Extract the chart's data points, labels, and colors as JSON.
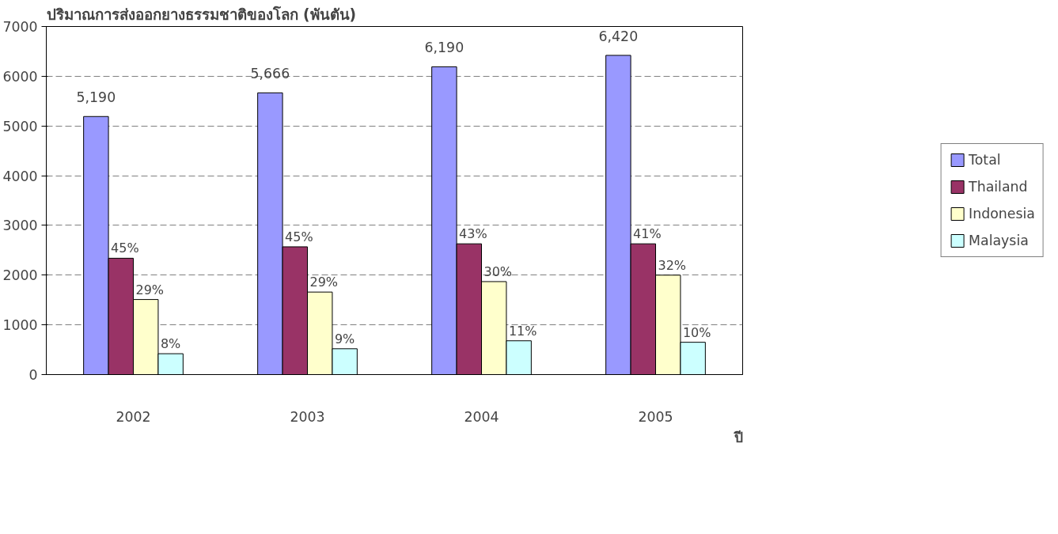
{
  "chart_data": {
    "type": "bar",
    "title": "ปริมาณการส่งออกยางธรรมชาติของโลก (พันตัน)",
    "xlabel": "ปี",
    "categories": [
      "2002",
      "2003",
      "2004",
      "2005"
    ],
    "series": [
      {
        "name": "Total",
        "color": "#9999ff",
        "values": [
          5190,
          5666,
          6190,
          6420
        ],
        "value_labels": [
          "5,190",
          "5,666",
          "6,190",
          "6,420"
        ]
      },
      {
        "name": "Thailand",
        "color": "#993366",
        "values": [
          2340,
          2570,
          2630,
          2630
        ]
      },
      {
        "name": "Indonesia",
        "color": "#ffffcc",
        "values": [
          1510,
          1660,
          1870,
          2000
        ]
      },
      {
        "name": "Malaysia",
        "color": "#ccffff",
        "values": [
          420,
          520,
          680,
          650
        ]
      }
    ],
    "annotations": [
      {
        "text": "45%",
        "x": "2002",
        "y": 2340
      },
      {
        "text": "45%",
        "x": "2003",
        "y": 2570
      },
      {
        "text": "43%",
        "x": "2004",
        "y": 2630
      },
      {
        "text": "41%",
        "x": "2005",
        "y": 2630
      },
      {
        "text": "29%",
        "x": "2002",
        "y": 1510
      },
      {
        "text": "29%",
        "x": "2003",
        "y": 1660
      },
      {
        "text": "30%",
        "x": "2004",
        "y": 1870
      },
      {
        "text": "32%",
        "x": "2005",
        "y": 2000
      },
      {
        "text": "8%",
        "x": "2002",
        "y": 420
      },
      {
        "text": "9%",
        "x": "2003",
        "y": 520
      },
      {
        "text": "11%",
        "x": "2004",
        "y": 680
      },
      {
        "text": "10%",
        "x": "2005",
        "y": 650
      }
    ],
    "ylim": [
      0,
      7000
    ],
    "yticks": [
      0,
      1000,
      2000,
      3000,
      4000,
      5000,
      6000,
      7000
    ],
    "grid": "y",
    "legend": "right"
  }
}
